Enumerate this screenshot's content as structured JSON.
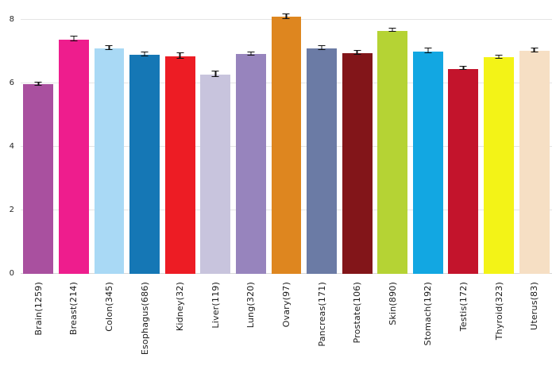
{
  "chart_data": {
    "type": "bar",
    "title": "",
    "xlabel": "",
    "ylabel": "",
    "ylim": [
      0,
      8.4
    ],
    "yticks": [
      0,
      2,
      4,
      6,
      8
    ],
    "grid": true,
    "legend": "none",
    "error_bars": true,
    "categories": [
      "Brain(1259)",
      "Breast(214)",
      "Colon(345)",
      "Esophagus(686)",
      "Kidney(32)",
      "Liver(119)",
      "Lung(320)",
      "Ovary(97)",
      "Pancreas(171)",
      "Prostate(106)",
      "Skin(890)",
      "Stomach(192)",
      "Testis(172)",
      "Thyroid(323)",
      "Uterus(83)"
    ],
    "values": [
      5.97,
      7.38,
      7.11,
      6.9,
      6.85,
      6.28,
      6.92,
      8.09,
      7.09,
      6.95,
      7.66,
      7.01,
      6.46,
      6.82,
      7.03
    ],
    "errors": [
      0.04,
      0.06,
      0.05,
      0.04,
      0.08,
      0.07,
      0.04,
      0.06,
      0.05,
      0.04,
      0.03,
      0.06,
      0.04,
      0.04,
      0.05
    ],
    "colors": [
      "#a9509f",
      "#ee1d8d",
      "#a9d9f5",
      "#1577b5",
      "#ed1c24",
      "#c8c4dd",
      "#9784bd",
      "#de861f",
      "#6b7ba5",
      "#821519",
      "#b5d334",
      "#12a7e2",
      "#c3142c",
      "#f3f317",
      "#f6dfc4"
    ]
  }
}
